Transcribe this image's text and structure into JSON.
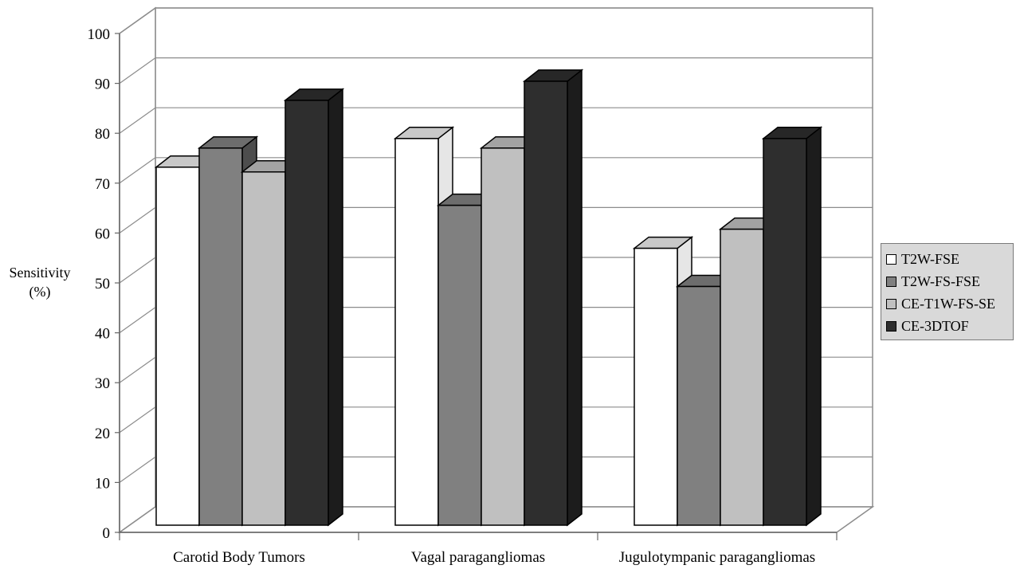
{
  "chart_data": {
    "type": "bar",
    "title": "",
    "ylabel": "Sensitivity (%)",
    "xlabel": "",
    "ylim": [
      0,
      100
    ],
    "yticks": [
      0,
      10,
      20,
      30,
      40,
      50,
      60,
      70,
      80,
      90,
      100
    ],
    "grid": true,
    "legend_position": "right",
    "categories": [
      "Carotid Body Tumors",
      "Vagal paragangliomas",
      "Jugulotympanic paragangliomas"
    ],
    "series": [
      {
        "name": "T2W-FSE",
        "values": [
          75,
          81,
          58
        ],
        "color": "#ffffff"
      },
      {
        "name": "T2W-FS-FSE",
        "values": [
          79,
          67,
          50
        ],
        "color": "#808080"
      },
      {
        "name": "CE-T1W-FS-SE",
        "values": [
          74,
          79,
          62
        ],
        "color": "#c0c0c0"
      },
      {
        "name": "CE-3DTOF",
        "values": [
          89,
          93,
          81
        ],
        "color": "#2e2e2e"
      }
    ]
  },
  "labels": {
    "ylabel_line1": "Sensitivity",
    "ylabel_line2": "(%)"
  }
}
